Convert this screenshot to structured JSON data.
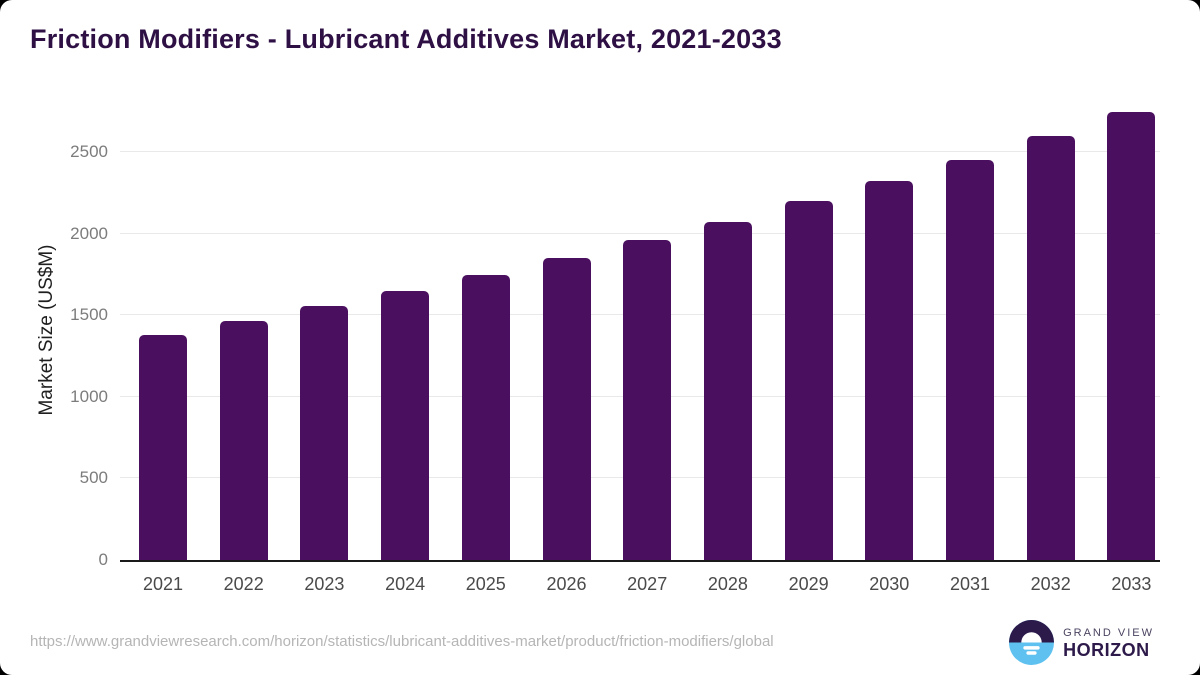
{
  "page": {
    "background_color": "#000000",
    "card_color": "#ffffff",
    "title_color": "#2e1045"
  },
  "header": {
    "title": "Friction Modifiers - Lubricant Additives Market, 2021-2033"
  },
  "chart_data": {
    "type": "bar",
    "title": "Friction Modifiers - Lubricant Additives Market, 2021-2033",
    "categories": [
      "2021",
      "2022",
      "2023",
      "2024",
      "2025",
      "2026",
      "2027",
      "2028",
      "2029",
      "2030",
      "2031",
      "2032",
      "2033"
    ],
    "values": [
      1380,
      1465,
      1555,
      1650,
      1750,
      1855,
      1960,
      2075,
      2200,
      2325,
      2455,
      2600,
      2750
    ],
    "xlabel": "",
    "ylabel": "Market Size (US$M)",
    "yticks": [
      0,
      500,
      1000,
      1500,
      2000,
      2500
    ],
    "ylim": [
      0,
      2820
    ],
    "grid": "horizontal",
    "legend": "none",
    "bar_color": "#4a105f",
    "gridline_color": "#e9e9e9",
    "axis_line_color": "#1a1a1a",
    "ytick_color": "#7c7c7c",
    "xtick_color": "#4a4a4a"
  },
  "footer": {
    "source_url": "https://www.grandviewresearch.com/horizon/statistics/lubricant-additives-market/product/friction-modifiers/global",
    "logo": {
      "line1": "GRAND VIEW",
      "line2": "HORIZON",
      "icon": "sunrise-horizon-icon",
      "icon_top_color": "#2b1a4a",
      "icon_bottom_color": "#5ec1ef"
    }
  }
}
